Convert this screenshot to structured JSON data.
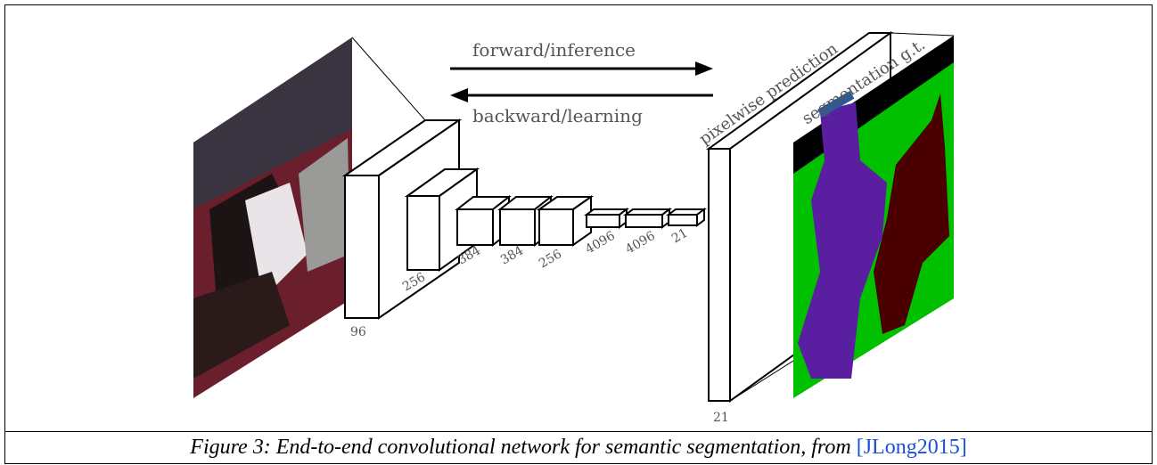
{
  "figure": {
    "arrows": {
      "forward": "forward/inference",
      "backward": "backward/learning"
    },
    "layers": [
      "96",
      "256",
      "384",
      "384",
      "256",
      "4096",
      "4096",
      "21"
    ],
    "output_layer": "21",
    "prediction_label": "pixelwise prediction",
    "ground_truth_label": "segmentation g.t.",
    "caption": {
      "text": "Figure 3: End-to-end convolutional network for semantic segmentation, from ",
      "reference": "[JLong2015]"
    }
  }
}
